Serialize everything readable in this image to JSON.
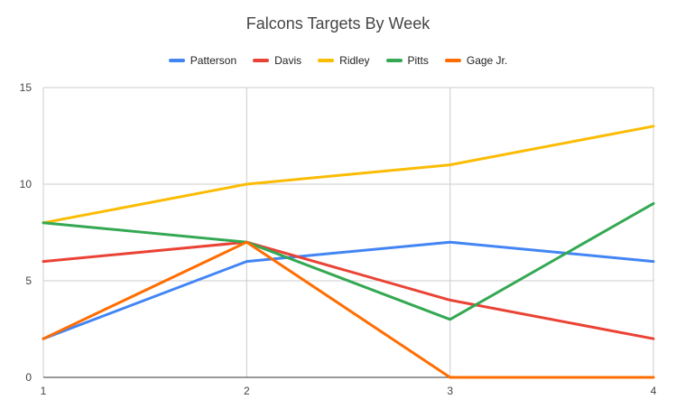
{
  "chart_data": {
    "type": "line",
    "title": "Falcons Targets By Week",
    "xlabel": "",
    "ylabel": "",
    "x": [
      1,
      2,
      3,
      4
    ],
    "xticks": [
      1,
      2,
      3,
      4
    ],
    "yticks": [
      0,
      5,
      10,
      15
    ],
    "ylim": [
      0,
      15
    ],
    "grid": true,
    "legend_position": "top",
    "series": [
      {
        "name": "Patterson",
        "color": "#4285F4",
        "values": [
          2,
          6,
          7,
          6
        ]
      },
      {
        "name": "Davis",
        "color": "#EA4335",
        "values": [
          6,
          7,
          4,
          2
        ]
      },
      {
        "name": "Ridley",
        "color": "#FBBC04",
        "values": [
          8,
          10,
          11,
          13
        ]
      },
      {
        "name": "Pitts",
        "color": "#34A853",
        "values": [
          8,
          7,
          3,
          9
        ]
      },
      {
        "name": "Gage Jr.",
        "color": "#FF6D01",
        "values": [
          2,
          7,
          0,
          0
        ]
      }
    ],
    "colors": {
      "gridline": "#cccccc",
      "baseline": "#333333",
      "tick_label": "#444444",
      "title": "#454545"
    }
  }
}
